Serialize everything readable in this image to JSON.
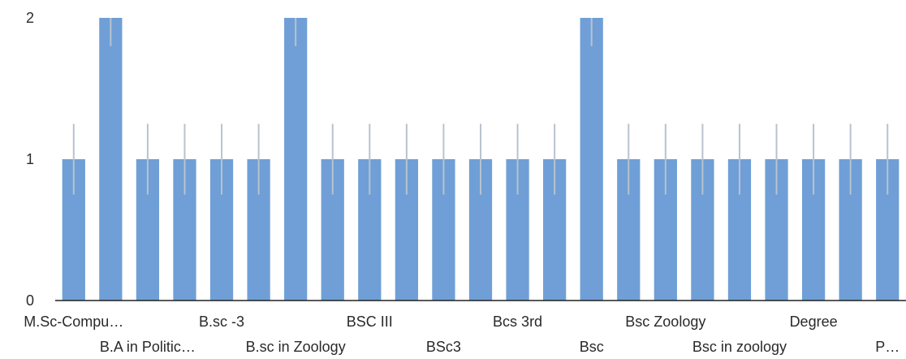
{
  "chart_data": {
    "type": "bar",
    "categories": [
      "M.Sc-Compu…",
      "",
      "B.A in Politic…",
      "",
      "B.sc -3",
      "",
      "B.sc in Zoology",
      "",
      "BSC III",
      "",
      "BSc3",
      "",
      "Bcs 3rd",
      "",
      "Bsc",
      "",
      "Bsc Zoology",
      "",
      "Bsc in zoology",
      "",
      "Degree",
      "",
      "P…"
    ],
    "values": [
      1,
      2,
      1,
      1,
      1,
      1,
      2,
      1,
      1,
      1,
      1,
      1,
      1,
      1,
      2,
      1,
      1,
      1,
      1,
      1,
      1,
      1,
      1
    ],
    "error_values": [
      0.25,
      0.2,
      0.25,
      0.25,
      0.25,
      0.25,
      0.2,
      0.25,
      0.25,
      0.25,
      0.25,
      0.25,
      0.25,
      0.25,
      0.2,
      0.25,
      0.25,
      0.25,
      0.25,
      0.25,
      0.25,
      0.25,
      0.25
    ],
    "yticks": [
      "0",
      "1",
      "2"
    ],
    "ylim": [
      0,
      2
    ],
    "grid": false,
    "colors": {
      "bar": "#6f9fd6",
      "errorbar": "#b8c3cf",
      "axis": "#222222",
      "text": "#2a2a2a"
    }
  }
}
